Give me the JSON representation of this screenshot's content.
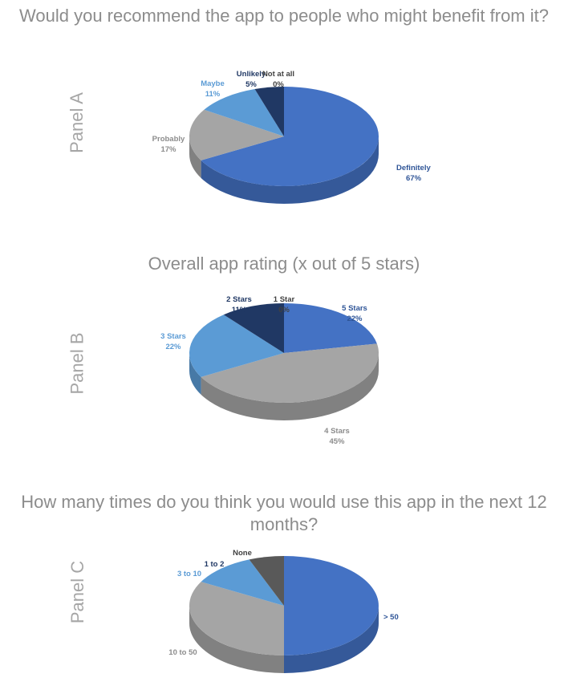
{
  "colors": {
    "definitely_blue": "#4472c4",
    "light_blue": "#5b9bd5",
    "navy": "#203864",
    "gray": "#a5a5a5",
    "dark_gray": "#595959",
    "title_gray": "#8c8c8c"
  },
  "chart_data": [
    {
      "type": "pie",
      "title": "Would you recommend the app to people who might benefit from it?",
      "panel_label": "Panel A",
      "categories": [
        "Definitely",
        "Probably",
        "Maybe",
        "Unlikely",
        "Not at all"
      ],
      "values": [
        67,
        17,
        11,
        5,
        0
      ],
      "value_labels": [
        "67%",
        "17%",
        "11%",
        "5%",
        "0%"
      ],
      "colors": [
        "#4472c4",
        "#a5a5a5",
        "#5b9bd5",
        "#203864",
        "#595959"
      ],
      "label_colors": [
        "#2f5597",
        "#8c8c8c",
        "#5b9bd5",
        "#203864",
        "#404040"
      ]
    },
    {
      "type": "pie",
      "title": "Overall app rating (x out of 5 stars)",
      "panel_label": "Panel B",
      "categories": [
        "5 Stars",
        "4 Stars",
        "3 Stars",
        "2 Stars",
        "1 Star"
      ],
      "values": [
        22,
        45,
        22,
        11,
        0
      ],
      "value_labels": [
        "22%",
        "45%",
        "22%",
        "11%",
        "0%"
      ],
      "colors": [
        "#4472c4",
        "#a5a5a5",
        "#5b9bd5",
        "#203864",
        "#595959"
      ],
      "label_colors": [
        "#2f5597",
        "#8c8c8c",
        "#5b9bd5",
        "#203864",
        "#404040"
      ]
    },
    {
      "type": "pie",
      "title": "How many times do you think you would use this app in the next 12 months?",
      "panel_label": "Panel C",
      "categories": [
        "> 50",
        "10 to 50",
        "3 to 10",
        "1 to 2",
        "None"
      ],
      "values": [
        50,
        33,
        11,
        0,
        6
      ],
      "value_labels": [
        "",
        "",
        "",
        "",
        ""
      ],
      "colors": [
        "#4472c4",
        "#a5a5a5",
        "#5b9bd5",
        "#203864",
        "#595959"
      ],
      "label_colors": [
        "#2f5597",
        "#8c8c8c",
        "#5b9bd5",
        "#203864",
        "#404040"
      ]
    }
  ]
}
